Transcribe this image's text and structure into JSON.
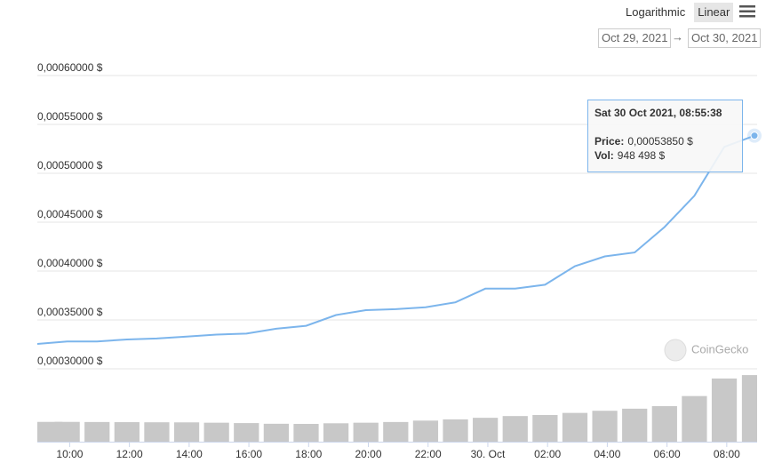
{
  "toolbar": {
    "scale_options": [
      "Logarithmic",
      "Linear"
    ],
    "selected_scale": "Linear",
    "date_from": "Oct 29, 2021",
    "date_separator": "→",
    "date_to": "Oct 30, 2021"
  },
  "chart_data": {
    "type": "line",
    "x": [
      "2021-10-29T08:55:00",
      "2021-10-29T09:55:00",
      "2021-10-29T10:55:00",
      "2021-10-29T11:55:00",
      "2021-10-29T12:55:00",
      "2021-10-29T13:55:00",
      "2021-10-29T14:55:00",
      "2021-10-29T15:55:00",
      "2021-10-29T16:55:00",
      "2021-10-29T17:55:00",
      "2021-10-29T18:55:00",
      "2021-10-29T19:55:00",
      "2021-10-29T20:55:00",
      "2021-10-29T21:55:00",
      "2021-10-29T22:55:00",
      "2021-10-29T23:55:00",
      "2021-10-30T00:55:00",
      "2021-10-30T01:55:00",
      "2021-10-30T02:55:00",
      "2021-10-30T03:55:00",
      "2021-10-30T04:55:00",
      "2021-10-30T05:55:00",
      "2021-10-30T06:55:00",
      "2021-10-30T07:55:00",
      "2021-10-30T08:55:38"
    ],
    "series": [
      {
        "color": "#7cb5ec",
        "values": [
          0.0003255,
          0.000328,
          0.000328,
          0.00033,
          0.000331,
          0.000333,
          0.000335,
          0.000336,
          0.000341,
          0.000344,
          0.000355,
          0.00036,
          0.000361,
          0.000363,
          0.000368,
          0.000382,
          0.000382,
          0.000386,
          0.000405,
          0.000415,
          0.000419,
          0.000445,
          0.000477,
          0.000527,
          0.0005385
        ]
      },
      {
        "type": "bar",
        "axis": "y2",
        "color": "#c8c8c8",
        "values": [
          282000,
          282000,
          280000,
          278000,
          276000,
          275000,
          270000,
          265000,
          255000,
          253000,
          262000,
          270000,
          280000,
          300000,
          318000,
          340000,
          365000,
          380000,
          410000,
          440000,
          470000,
          506000,
          650000,
          900000,
          948498
        ]
      }
    ],
    "xlim": [
      "2021-10-29T08:55:00",
      "2021-10-30T08:55:38"
    ],
    "xticks": [
      {
        "value": "2021-10-29T10:00:00",
        "label": "10:00"
      },
      {
        "value": "2021-10-29T12:00:00",
        "label": "12:00"
      },
      {
        "value": "2021-10-29T14:00:00",
        "label": "14:00"
      },
      {
        "value": "2021-10-29T16:00:00",
        "label": "16:00"
      },
      {
        "value": "2021-10-29T18:00:00",
        "label": "18:00"
      },
      {
        "value": "2021-10-29T20:00:00",
        "label": "20:00"
      },
      {
        "value": "2021-10-29T22:00:00",
        "label": "22:00"
      },
      {
        "value": "2021-10-30T00:00:00",
        "label": "30. Oct"
      },
      {
        "value": "2021-10-30T02:00:00",
        "label": "02:00"
      },
      {
        "value": "2021-10-30T04:00:00",
        "label": "04:00"
      },
      {
        "value": "2021-10-30T06:00:00",
        "label": "06:00"
      },
      {
        "value": "2021-10-30T08:00:00",
        "label": "08:00"
      }
    ],
    "ylim": [
      0.0003,
      0.0006
    ],
    "yticks": [
      {
        "value": 0.0006,
        "label": "0,00060000 $"
      },
      {
        "value": 0.00055,
        "label": "0,00055000 $"
      },
      {
        "value": 0.0005,
        "label": "0,00050000 $"
      },
      {
        "value": 0.00045,
        "label": "0,00045000 $"
      },
      {
        "value": 0.0004,
        "label": "0,00040000 $"
      },
      {
        "value": 0.00035,
        "label": "0,00035000 $"
      },
      {
        "value": 0.0003,
        "label": "0,00030000 $"
      }
    ],
    "y2lim": [
      0,
      1000000
    ],
    "grid": true,
    "log_scale": false,
    "tooltip": {
      "title": "Sat 30 Oct 2021, 08:55:38",
      "rows": [
        {
          "label": "Price:",
          "value": "0,00053850 $"
        },
        {
          "label": "Vol:",
          "value": "948 498 $"
        }
      ]
    },
    "watermark": "CoinGecko"
  }
}
